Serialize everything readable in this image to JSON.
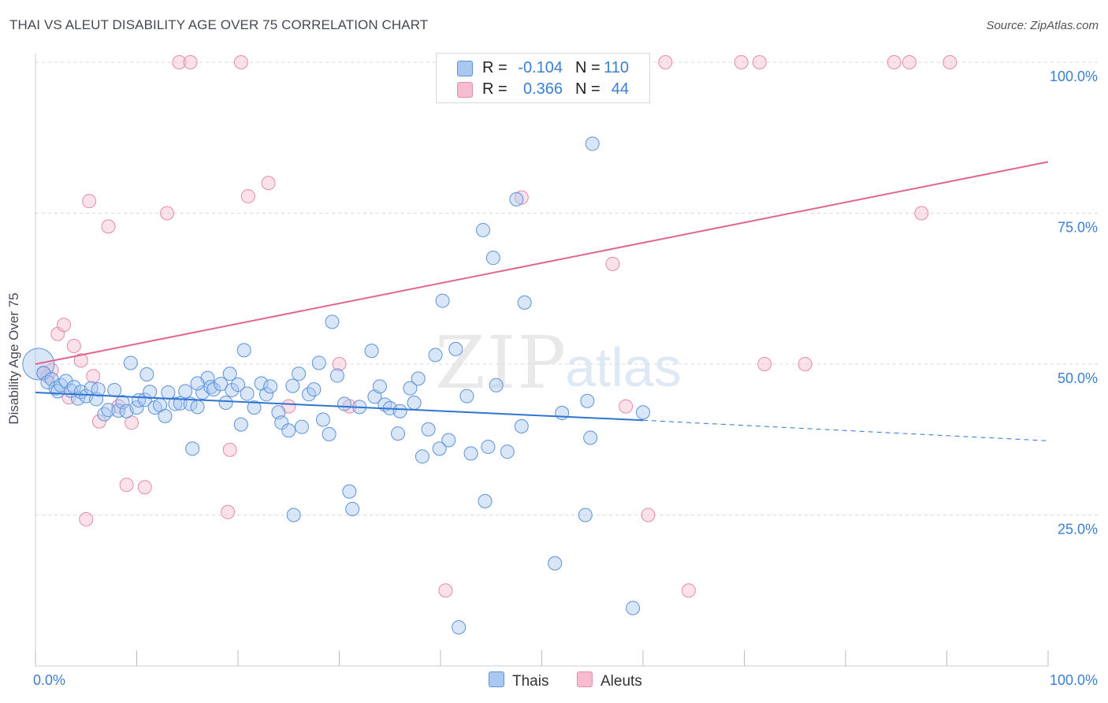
{
  "title": "THAI VS ALEUT DISABILITY AGE OVER 75 CORRELATION CHART",
  "source": "Source: ZipAtlas.com",
  "watermark": {
    "zip": "ZIP",
    "atlas": "atlas"
  },
  "legend_top": {
    "rows": [
      {
        "r_label": "R =",
        "r_value": "-0.104",
        "n_label": "N =",
        "n_value": "110"
      },
      {
        "r_label": "R =",
        "r_value": "0.366",
        "n_label": "N =",
        "n_value": "44"
      }
    ]
  },
  "legend_bottom": [
    {
      "label": "Thais"
    },
    {
      "label": "Aleuts"
    }
  ],
  "colors": {
    "thais_fill": "#a9c8f0",
    "thais_stroke": "#5b93dc",
    "thais_line": "#2f74d0",
    "aleuts_fill": "#f7bcd0",
    "aleuts_stroke": "#e88aaa",
    "aleuts_line": "#e06691",
    "tick_label": "#3a7fd5",
    "grid": "#d9d9d9"
  },
  "chart_data": {
    "type": "scatter",
    "xlabel": "",
    "ylabel": "Disability Age Over 75",
    "xlim": [
      0,
      100
    ],
    "ylim": [
      0,
      100
    ],
    "x_tick_labels": [
      "0.0%",
      "100.0%"
    ],
    "y_tick_labels": [
      "25.0%",
      "50.0%",
      "75.0%",
      "100.0%"
    ],
    "y_ticks": [
      25,
      50,
      75,
      100
    ],
    "grid": true,
    "legend_placement": "bottom-center",
    "series": [
      {
        "name": "Thais",
        "points": [
          [
            0.3,
            50
          ],
          [
            0.8,
            48.5
          ],
          [
            1.2,
            47
          ],
          [
            1.6,
            47.5
          ],
          [
            2,
            46
          ],
          [
            2.2,
            45.5
          ],
          [
            2.5,
            46.5
          ],
          [
            3,
            47.2
          ],
          [
            3.5,
            45.6
          ],
          [
            3.8,
            46.2
          ],
          [
            4.2,
            44.3
          ],
          [
            4.5,
            45.4
          ],
          [
            5,
            44.7
          ],
          [
            5.5,
            46
          ],
          [
            6,
            44.2
          ],
          [
            6.2,
            45.8
          ],
          [
            6.8,
            41.7
          ],
          [
            7.2,
            42.4
          ],
          [
            7.8,
            45.7
          ],
          [
            8.2,
            42.3
          ],
          [
            8.6,
            43.7
          ],
          [
            9,
            42.2
          ],
          [
            9.4,
            50.2
          ],
          [
            10,
            42.8
          ],
          [
            10.2,
            44
          ],
          [
            10.8,
            44.1
          ],
          [
            11,
            48.3
          ],
          [
            11.3,
            45.4
          ],
          [
            11.8,
            42.8
          ],
          [
            12.3,
            43.2
          ],
          [
            12.8,
            41.4
          ],
          [
            13.1,
            45.3
          ],
          [
            13.8,
            43.4
          ],
          [
            14.3,
            43.5
          ],
          [
            15.5,
            36
          ],
          [
            14.8,
            45.5
          ],
          [
            15.3,
            43.4
          ],
          [
            16,
            42.9
          ],
          [
            16.5,
            45.3
          ],
          [
            17,
            47.7
          ],
          [
            17.3,
            46.2
          ],
          [
            17.6,
            45.8
          ],
          [
            18.3,
            46.7
          ],
          [
            18.8,
            43.6
          ],
          [
            19.2,
            48.4
          ],
          [
            19.4,
            45.7
          ],
          [
            20.3,
            40
          ],
          [
            20.6,
            52.3
          ],
          [
            20.9,
            45.1
          ],
          [
            21.6,
            42.8
          ],
          [
            22.3,
            46.8
          ],
          [
            22.8,
            45
          ],
          [
            23.2,
            46.3
          ],
          [
            24,
            42
          ],
          [
            24.3,
            40.3
          ],
          [
            25,
            39
          ],
          [
            25.4,
            46.4
          ],
          [
            26,
            48.4
          ],
          [
            26.3,
            39.6
          ],
          [
            27,
            45
          ],
          [
            27.5,
            45.8
          ],
          [
            28,
            50.2
          ],
          [
            28.4,
            40.8
          ],
          [
            29,
            38.4
          ],
          [
            29.3,
            57
          ],
          [
            29.8,
            48.1
          ],
          [
            30.5,
            43.4
          ],
          [
            31,
            28.9
          ],
          [
            31.3,
            26
          ],
          [
            32,
            42.9
          ],
          [
            33.2,
            52.2
          ],
          [
            33.5,
            44.6
          ],
          [
            34,
            46.3
          ],
          [
            34.5,
            43.3
          ],
          [
            35,
            42.7
          ],
          [
            35.8,
            38.5
          ],
          [
            36,
            42.2
          ],
          [
            37,
            46
          ],
          [
            37.4,
            43.6
          ],
          [
            37.8,
            47.6
          ],
          [
            38.2,
            34.7
          ],
          [
            38.8,
            39.2
          ],
          [
            39.5,
            51.5
          ],
          [
            39.9,
            36
          ],
          [
            40.2,
            60.5
          ],
          [
            40.8,
            37.4
          ],
          [
            41.5,
            52.5
          ],
          [
            41.8,
            6.4
          ],
          [
            42.6,
            44.7
          ],
          [
            43,
            35.2
          ],
          [
            44.2,
            72.2
          ],
          [
            44.4,
            27.3
          ],
          [
            44.7,
            36.3
          ],
          [
            45.2,
            67.6
          ],
          [
            45.5,
            46.5
          ],
          [
            46.6,
            35.5
          ],
          [
            47.5,
            77.3
          ],
          [
            48,
            39.7
          ],
          [
            48.3,
            60.2
          ],
          [
            51.3,
            17
          ],
          [
            52,
            41.9
          ],
          [
            54.3,
            25
          ],
          [
            54.5,
            43.9
          ],
          [
            54.8,
            37.8
          ],
          [
            55,
            86.5
          ],
          [
            59,
            9.6
          ],
          [
            60,
            42
          ],
          [
            25.5,
            25
          ],
          [
            16,
            46.8
          ],
          [
            20,
            46.6
          ]
        ]
      },
      {
        "name": "Aleuts",
        "points": [
          [
            0.8,
            48.6
          ],
          [
            1.2,
            48
          ],
          [
            1.6,
            49
          ],
          [
            2.2,
            55
          ],
          [
            2.8,
            56.5
          ],
          [
            3.3,
            44.5
          ],
          [
            3.8,
            53
          ],
          [
            4.5,
            50.6
          ],
          [
            5,
            24.3
          ],
          [
            5.3,
            77
          ],
          [
            5.7,
            48
          ],
          [
            6.3,
            40.5
          ],
          [
            7.2,
            72.8
          ],
          [
            8.2,
            43
          ],
          [
            9,
            30
          ],
          [
            9.5,
            40.3
          ],
          [
            10.8,
            29.6
          ],
          [
            13,
            75
          ],
          [
            14.2,
            100
          ],
          [
            15.3,
            100
          ],
          [
            19,
            25.5
          ],
          [
            19.2,
            35.8
          ],
          [
            20.3,
            100
          ],
          [
            21,
            77.8
          ],
          [
            23,
            80
          ],
          [
            25,
            43
          ],
          [
            30,
            50
          ],
          [
            31,
            43
          ],
          [
            40.5,
            12.5
          ],
          [
            48,
            77.6
          ],
          [
            52,
            100
          ],
          [
            57,
            66.6
          ],
          [
            58.3,
            43
          ],
          [
            60.5,
            25
          ],
          [
            62.2,
            100
          ],
          [
            64.5,
            12.5
          ],
          [
            69.7,
            100
          ],
          [
            71.5,
            100
          ],
          [
            72,
            50
          ],
          [
            76,
            50
          ],
          [
            84.8,
            100
          ],
          [
            86.3,
            100
          ],
          [
            87.5,
            75
          ],
          [
            90.3,
            100
          ]
        ]
      }
    ],
    "trend_lines": [
      {
        "series": "Thais",
        "x1": 0,
        "y1": 45.3,
        "x2": 60,
        "y2": 40.7,
        "dashed_to_x": 100,
        "dashed_to_y": 37.3
      },
      {
        "series": "Aleuts",
        "x1": 0,
        "y1": 50,
        "x2": 100,
        "y2": 83.5
      }
    ]
  }
}
